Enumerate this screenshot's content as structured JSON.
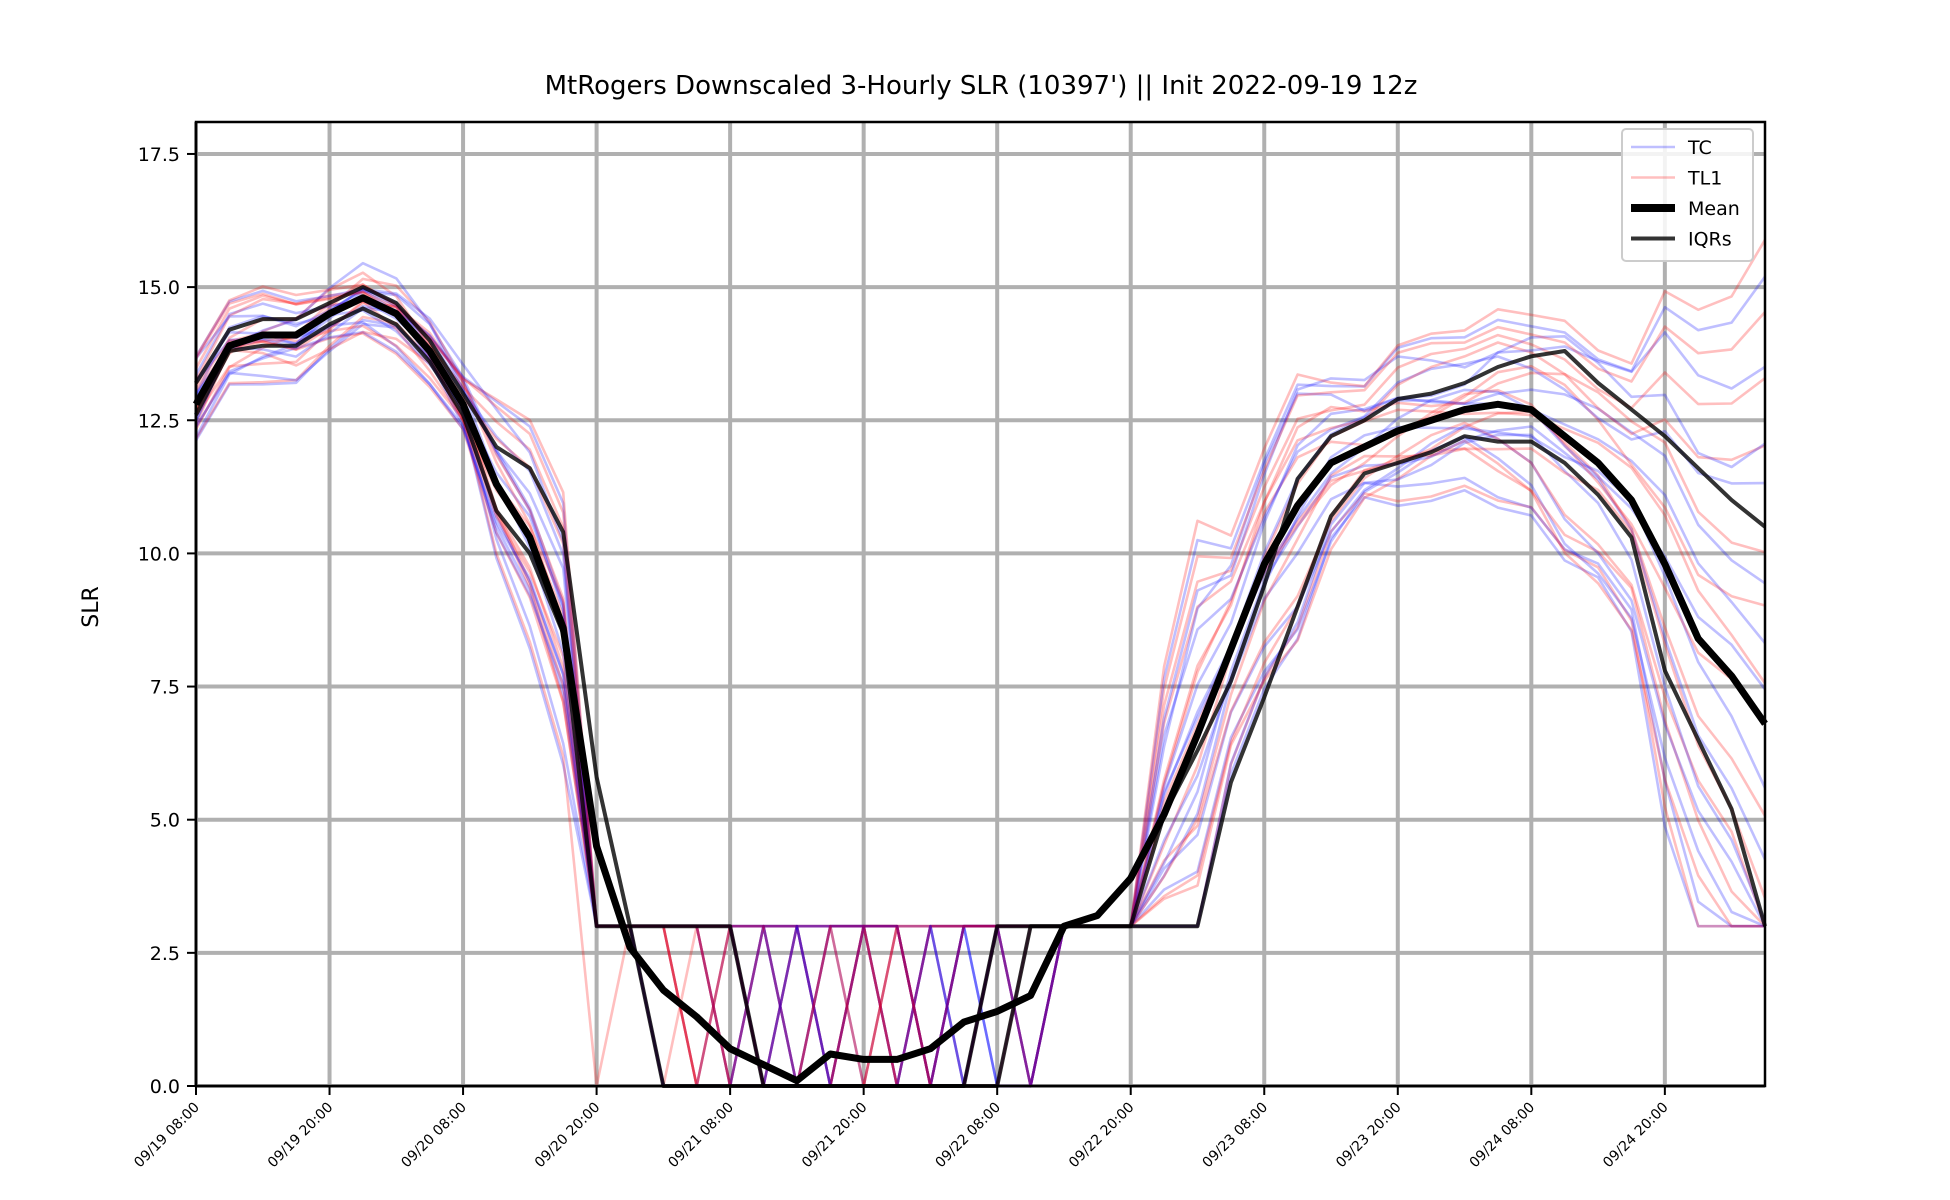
{
  "chart_data": {
    "type": "line",
    "title": "MtRogers Downscaled 3-Hourly SLR (10397') || Init 2022-09-19 12z",
    "xlabel": "",
    "ylabel": "SLR",
    "ylim": [
      0,
      18.1
    ],
    "yticks": [
      "0.0",
      "2.5",
      "5.0",
      "7.5",
      "10.0",
      "12.5",
      "15.0",
      "17.5"
    ],
    "x_start": "2022-09-19 08:00",
    "x_end": "2022-09-25 11:00",
    "x_step_hours": 3,
    "xticks": [
      "09/19 08:00",
      "09/19 20:00",
      "09/20 08:00",
      "09/20 20:00",
      "09/21 08:00",
      "09/21 20:00",
      "09/22 08:00",
      "09/22 20:00",
      "09/23 08:00",
      "09/23 20:00",
      "09/24 08:00",
      "09/24 20:00"
    ],
    "grid": true,
    "legend_position": "top-right",
    "legend": [
      {
        "label": "TC",
        "color": "#0000ff",
        "alpha": 0.25,
        "width": 2.5
      },
      {
        "label": "TL1",
        "color": "#ff0000",
        "alpha": 0.25,
        "width": 2.5
      },
      {
        "label": "Mean",
        "color": "#000000",
        "alpha": 1.0,
        "width": 8
      },
      {
        "label": "IQRs",
        "color": "#000000",
        "alpha": 0.8,
        "width": 4
      }
    ],
    "series": [
      {
        "name": "Mean",
        "color": "#000000",
        "values": [
          12.8,
          13.9,
          14.1,
          14.1,
          14.5,
          14.8,
          14.5,
          13.8,
          12.8,
          11.3,
          10.3,
          8.6,
          4.5,
          2.6,
          1.8,
          1.3,
          0.7,
          0.4,
          0.1,
          0.6,
          0.5,
          0.5,
          0.7,
          1.2,
          1.4,
          1.7,
          3.0,
          3.2,
          3.9,
          5.1,
          6.6,
          8.2,
          9.8,
          10.9,
          11.7,
          12.0,
          12.3,
          12.5,
          12.7,
          12.8,
          12.7,
          12.2,
          11.7,
          11.0,
          9.8,
          8.4,
          7.7,
          6.8
        ]
      },
      {
        "name": "IQR upper",
        "color": "#000000",
        "values": [
          13.2,
          14.2,
          14.4,
          14.4,
          14.7,
          15.0,
          14.7,
          14.0,
          13.0,
          12.0,
          11.6,
          10.4,
          5.8,
          3.0,
          3.0,
          3.0,
          3.0,
          0.0,
          0.0,
          0.0,
          0.0,
          0.0,
          0.0,
          0.0,
          3.0,
          3.0,
          3.0,
          3.0,
          3.0,
          5.1,
          6.3,
          7.6,
          9.4,
          11.4,
          12.2,
          12.5,
          12.9,
          13.0,
          13.2,
          13.5,
          13.7,
          13.8,
          13.2,
          12.7,
          12.2,
          11.6,
          11.0,
          10.5
        ]
      },
      {
        "name": "IQR lower",
        "color": "#000000",
        "values": [
          12.6,
          13.8,
          13.9,
          13.9,
          14.3,
          14.6,
          14.3,
          13.6,
          12.6,
          10.8,
          10.0,
          8.5,
          3.0,
          3.0,
          0.0,
          0.0,
          0.0,
          0.0,
          0.0,
          0.0,
          0.0,
          0.0,
          0.0,
          0.0,
          0.0,
          3.0,
          3.0,
          3.0,
          3.0,
          3.0,
          3.0,
          5.7,
          7.3,
          9.0,
          10.7,
          11.5,
          11.7,
          11.9,
          12.2,
          12.1,
          12.1,
          11.7,
          11.1,
          10.3,
          7.8,
          6.5,
          5.2,
          3.0
        ]
      }
    ]
  }
}
